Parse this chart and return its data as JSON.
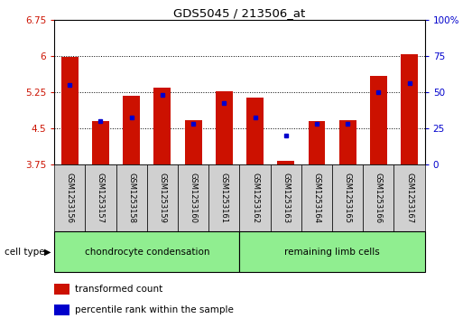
{
  "title": "GDS5045 / 213506_at",
  "samples": [
    "GSM1253156",
    "GSM1253157",
    "GSM1253158",
    "GSM1253159",
    "GSM1253160",
    "GSM1253161",
    "GSM1253162",
    "GSM1253163",
    "GSM1253164",
    "GSM1253165",
    "GSM1253166",
    "GSM1253167"
  ],
  "red_values": [
    5.98,
    4.65,
    5.17,
    5.33,
    4.67,
    5.27,
    5.13,
    3.82,
    4.65,
    4.67,
    5.58,
    6.03
  ],
  "blue_percentiles": [
    55,
    30,
    32,
    48,
    28,
    42,
    32,
    20,
    28,
    28,
    50,
    56
  ],
  "ylim_left": [
    3.75,
    6.75
  ],
  "ylim_right": [
    0,
    100
  ],
  "yticks_left": [
    3.75,
    4.5,
    5.25,
    6.0,
    6.75
  ],
  "ytick_labels_left": [
    "3.75",
    "4.5",
    "5.25",
    "6",
    "6.75"
  ],
  "yticks_right": [
    0,
    25,
    50,
    75,
    100
  ],
  "ytick_labels_right": [
    "0",
    "25",
    "50",
    "75",
    "100%"
  ],
  "bar_bottom": 3.75,
  "bar_color": "#cc1100",
  "blue_color": "#0000cc",
  "group1_label": "chondrocyte condensation",
  "group2_label": "remaining limb cells",
  "group1_count": 6,
  "group2_count": 6,
  "cell_type_label": "cell type",
  "legend_red": "transformed count",
  "legend_blue": "percentile rank within the sample",
  "bar_width": 0.55,
  "fig_width": 5.23,
  "fig_height": 3.63,
  "dpi": 100
}
